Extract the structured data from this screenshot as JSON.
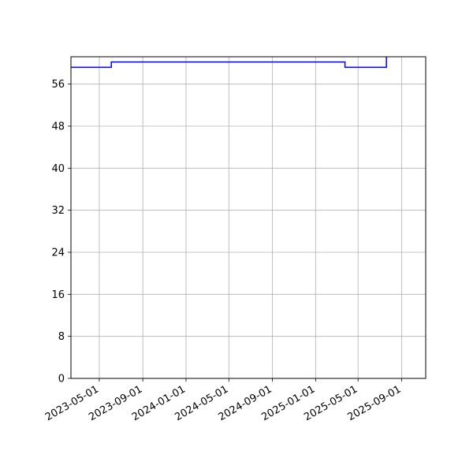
{
  "chart_data": {
    "type": "line",
    "title": "",
    "xlabel": "",
    "ylabel": "",
    "grid": true,
    "legend": "none",
    "xlim": [
      "2023-02-10",
      "2025-11-08"
    ],
    "ylim": [
      0,
      61.2
    ],
    "x_ticks": [
      "2023-05-01",
      "2023-09-01",
      "2024-01-01",
      "2024-05-01",
      "2024-09-01",
      "2025-01-01",
      "2025-05-01",
      "2025-09-01"
    ],
    "y_ticks": [
      "0",
      "8",
      "16",
      "24",
      "32",
      "40",
      "48",
      "56"
    ],
    "series": [
      {
        "color": "#0000ff",
        "drawstyle": "steps-post",
        "x": [
          "2023-02-10",
          "2023-06-04",
          "2025-03-25",
          "2025-07-20",
          "2025-07-20"
        ],
        "y": [
          59.2,
          60.2,
          59.2,
          59.2,
          61.2
        ]
      }
    ]
  }
}
